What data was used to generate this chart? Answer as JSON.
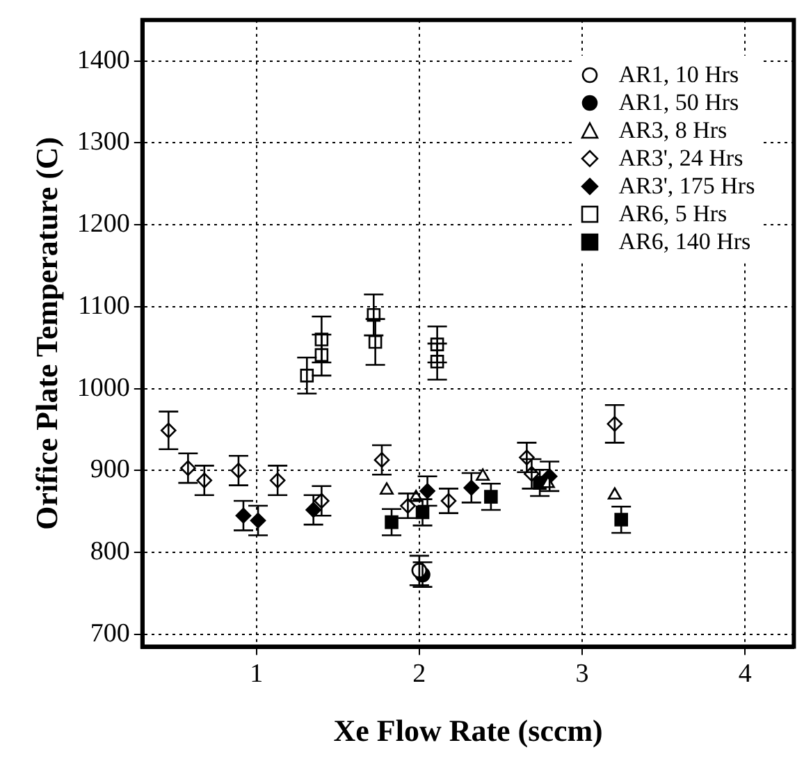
{
  "chart_data": {
    "type": "scatter",
    "xlabel": "Xe Flow Rate (sccm)",
    "ylabel": "Orifice Plate Temperature (C)",
    "xlim": [
      0.3,
      4.3
    ],
    "xticks": [
      1,
      2,
      3,
      4
    ],
    "ylim": [
      685,
      1450
    ],
    "yticks": [
      700,
      800,
      900,
      1000,
      1100,
      1200,
      1300,
      1400
    ],
    "grid": true,
    "legend": "top right",
    "line_style": "dotted",
    "series": [
      {
        "name": "AR1, 10 Hrs",
        "color": "#ffffff",
        "marker": "circle",
        "x": [
          2.0
        ],
        "values": [
          778
        ],
        "errors": [
          18
        ]
      },
      {
        "name": "AR1, 50 Hrs",
        "color": "#000000",
        "marker": "circle",
        "x": [
          2.02
        ],
        "values": [
          773
        ],
        "errors": [
          15
        ]
      },
      {
        "name": "AR3, 8 Hrs",
        "color": "#ffffff",
        "marker": "triangle",
        "x": [
          1.8,
          1.98,
          2.39,
          2.79,
          3.2
        ],
        "values": [
          876,
          867,
          893,
          884,
          870
        ],
        "errors": [
          null,
          null,
          null,
          null,
          null
        ]
      },
      {
        "name": "AR3', 24 Hrs",
        "color": "#ffffff",
        "marker": "diamond",
        "x": [
          0.46,
          0.58,
          0.68,
          0.89,
          1.13,
          1.4,
          1.77,
          1.93,
          2.18,
          2.66,
          2.69,
          3.2
        ],
        "values": [
          949,
          903,
          888,
          900,
          888,
          863,
          913,
          857,
          863,
          916,
          896,
          957
        ],
        "errors": [
          23,
          18,
          18,
          18,
          18,
          18,
          18,
          15,
          15,
          18,
          18,
          23
        ]
      },
      {
        "name": "AR3', 175 Hrs",
        "color": "#000000",
        "marker": "diamond",
        "x": [
          0.92,
          1.01,
          1.35,
          2.05,
          2.32,
          2.8
        ],
        "values": [
          845,
          839,
          852,
          875,
          879,
          893
        ],
        "errors": [
          18,
          18,
          18,
          18,
          18,
          18
        ]
      },
      {
        "name": "AR6, 5 Hrs",
        "color": "#ffffff",
        "marker": "square",
        "x": [
          1.31,
          1.4,
          1.4,
          1.72,
          1.73,
          2.11,
          2.11
        ],
        "values": [
          1016,
          1041,
          1060,
          1090,
          1057,
          1054,
          1033
        ],
        "errors": [
          22,
          25,
          28,
          25,
          28,
          22,
          22
        ]
      },
      {
        "name": "AR6, 140 Hrs",
        "color": "#000000",
        "marker": "square",
        "x": [
          1.83,
          2.02,
          2.44,
          2.74,
          3.24
        ],
        "values": [
          837,
          849,
          868,
          885,
          840
        ],
        "errors": [
          16,
          16,
          16,
          16,
          16
        ]
      }
    ]
  }
}
